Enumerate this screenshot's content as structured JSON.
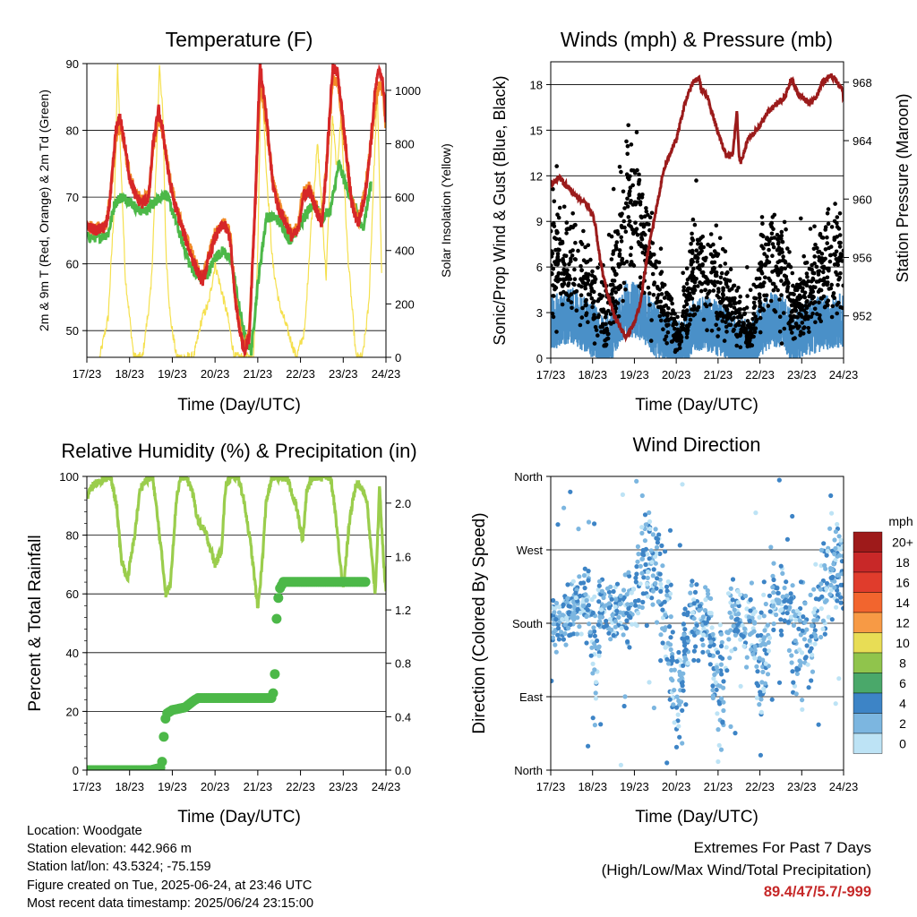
{
  "colors": {
    "temp_2m": "#d62728",
    "temp_9m": "#f28c28",
    "dewpoint": "#4cb848",
    "solar": "#f5e04e",
    "gust": "#000000",
    "wind": "#4a90c8",
    "pressure": "#9b1b1b",
    "rh": "#9acd4c",
    "precip": "#4cb848",
    "extremes_value": "#c62828"
  },
  "info": {
    "location": "Location: Woodgate",
    "elevation": "Station elevation: 442.966 m",
    "latlon": "Station lat/lon: 43.5324; -75.159",
    "created": "Figure created on Tue, 2025-06-24, at 23:46 UTC",
    "timestamp": "Most recent data timestamp: 2025/06/24 23:15:00"
  },
  "extremes": {
    "title": "Extremes For Past 7 Days",
    "subtitle": "(High/Low/Max Wind/Total Precipitation)",
    "value": "89.4/47/5.7/-999"
  },
  "chart_data": [
    {
      "type": "line",
      "title": "Temperature (F)",
      "xlabel": "Time (Day/UTC)",
      "ylabel": "2m & 9m T (Red, Orange) & 2m Td (Green)",
      "y2label": "Solar Insolation (Yellow)",
      "xticks": [
        "17/23",
        "18/23",
        "19/23",
        "20/23",
        "21/23",
        "22/23",
        "23/23",
        "24/23"
      ],
      "xlim": [
        0,
        7
      ],
      "ylim": [
        46,
        90
      ],
      "yticks": [
        50,
        60,
        70,
        80,
        90
      ],
      "y2lim": [
        0,
        1100
      ],
      "y2ticks": [
        0,
        200,
        400,
        600,
        800,
        1000
      ],
      "grid": "horizontal",
      "series": [
        {
          "name": "2m T",
          "axis": "left",
          "x": [
            0,
            0.2,
            0.45,
            0.55,
            0.68,
            0.78,
            0.88,
            1.0,
            1.15,
            1.3,
            1.45,
            1.55,
            1.68,
            1.8,
            1.92,
            2.05,
            2.2,
            2.4,
            2.55,
            2.65,
            2.72,
            2.8,
            3.0,
            3.2,
            3.35,
            3.45,
            3.55,
            3.68,
            3.8,
            3.95,
            4.05,
            4.2,
            4.35,
            4.5,
            4.6,
            4.8,
            4.95,
            5.05,
            5.2,
            5.35,
            5.5,
            5.6,
            5.75,
            5.88,
            5.95,
            6.05,
            6.2,
            6.35,
            6.5,
            6.6,
            6.75,
            6.85,
            6.95,
            7.0
          ],
          "y": [
            65.5,
            65,
            65.5,
            70,
            80,
            82,
            78,
            73,
            70,
            69,
            70,
            78,
            83,
            79,
            73,
            69,
            66,
            62,
            59.5,
            58,
            57.5,
            59.5,
            64,
            66,
            64,
            56,
            51,
            47,
            49,
            71,
            90,
            82,
            72,
            68,
            67,
            64,
            65,
            70,
            71,
            68.5,
            66,
            74,
            89.3,
            88.5,
            84,
            78,
            69,
            66,
            70,
            75,
            86,
            89.4,
            86,
            81
          ]
        },
        {
          "name": "9m T",
          "axis": "left",
          "x": [
            0,
            0.2,
            0.45,
            0.55,
            0.68,
            0.78,
            0.88,
            1.0,
            1.15,
            1.3,
            1.45,
            1.55,
            1.68,
            1.8,
            1.92,
            2.05,
            2.2,
            2.4,
            2.55,
            2.65,
            2.72,
            2.8,
            3.0,
            3.2,
            3.35,
            3.45,
            3.55,
            3.68,
            3.8,
            3.95,
            4.05,
            4.2,
            4.35,
            4.5,
            4.6,
            4.8,
            4.95,
            5.05,
            5.2,
            5.35,
            5.5,
            5.6,
            5.75,
            5.88,
            5.95,
            6.05,
            6.2,
            6.35,
            6.5,
            6.6,
            6.75,
            6.85,
            6.95,
            7.0
          ],
          "y": [
            65.8,
            65.3,
            65.8,
            70.3,
            79,
            81,
            77.5,
            73,
            70.5,
            69.5,
            70.5,
            77,
            82,
            79,
            73.5,
            69.5,
            66.5,
            62.5,
            60,
            58.5,
            58,
            60,
            64.5,
            66.5,
            64.5,
            56.5,
            51.5,
            47.5,
            49.5,
            70,
            88,
            81,
            72.5,
            68.5,
            67.5,
            64.5,
            65.5,
            70.5,
            71.5,
            69,
            66.5,
            74,
            87.5,
            87,
            83,
            77,
            69.5,
            66.5,
            70.5,
            75.5,
            84,
            87,
            85,
            80
          ]
        },
        {
          "name": "2m Td",
          "axis": "left",
          "x": [
            0,
            0.3,
            0.5,
            0.65,
            0.8,
            1.0,
            1.2,
            1.4,
            1.55,
            1.7,
            1.85,
            2.0,
            2.2,
            2.4,
            2.6,
            2.8,
            3.0,
            3.2,
            3.4,
            3.55,
            3.7,
            3.85,
            4.0,
            4.2,
            4.4,
            4.55,
            4.75,
            4.9,
            5.1,
            5.3,
            5.5,
            5.7,
            5.9,
            6.1,
            6.3,
            6.45,
            6.65
          ],
          "y": [
            64,
            64,
            64.5,
            69,
            70,
            69.5,
            68,
            68,
            69,
            70,
            70.5,
            68,
            64,
            60,
            58,
            58,
            61,
            62,
            60,
            54,
            49,
            47,
            57,
            67,
            67,
            66,
            63.5,
            65,
            67,
            69,
            67,
            68,
            75,
            71,
            68,
            65,
            72
          ]
        },
        {
          "name": "Solar",
          "axis": "right",
          "x": [
            0.3,
            0.5,
            0.65,
            0.72,
            0.78,
            0.9,
            1.1,
            1.3,
            1.5,
            1.62,
            1.7,
            1.78,
            1.85,
            1.95,
            2.1,
            2.3,
            2.5,
            2.7,
            2.85,
            3.0,
            3.15,
            3.3,
            3.45,
            3.6,
            3.9,
            4.0,
            4.08,
            4.2,
            4.35,
            4.5,
            4.7,
            4.9,
            5.1,
            5.25,
            5.4,
            5.6,
            5.75,
            5.85,
            5.95,
            6.1,
            6.3,
            6.45,
            6.6,
            6.72,
            6.8,
            6.9
          ],
          "y": [
            0,
            150,
            600,
            1100,
            800,
            300,
            0,
            0,
            250,
            700,
            1100,
            900,
            400,
            150,
            0,
            0,
            0,
            150,
            200,
            350,
            250,
            150,
            0,
            0,
            0,
            400,
            1100,
            700,
            350,
            200,
            100,
            0,
            100,
            500,
            800,
            300,
            900,
            700,
            900,
            400,
            0,
            0,
            200,
            700,
            1000,
            300
          ]
        }
      ]
    },
    {
      "type": "scatter",
      "title": "Winds (mph) & Pressure (mb)",
      "xlabel": "Time (Day/UTC)",
      "ylabel": "Sonic/Prop Wind & Gust (Blue, Black)",
      "y2label": "Station Pressure (Maroon)",
      "xticks": [
        "17/23",
        "18/23",
        "19/23",
        "20/23",
        "21/23",
        "22/23",
        "23/23",
        "24/23"
      ],
      "xlim": [
        0,
        7
      ],
      "ylim": [
        0,
        19.5
      ],
      "yticks": [
        0,
        3,
        6,
        9,
        12,
        15,
        18
      ],
      "y2lim": [
        949.1,
        969.4
      ],
      "y2ticks": [
        952,
        956,
        960,
        964,
        968
      ],
      "grid": "horizontal",
      "gust_envelope": {
        "x": [
          0,
          0.5,
          1.0,
          1.3,
          1.6,
          1.8,
          2.0,
          2.2,
          2.5,
          2.8,
          3.1,
          3.4,
          3.6,
          3.8,
          4.1,
          4.3,
          4.6,
          4.8,
          5.0,
          5.3,
          5.6,
          5.8,
          6.0,
          6.3,
          6.6,
          6.8,
          7.0
        ],
        "mean": [
          6,
          6.5,
          4.5,
          2.5,
          6,
          10,
          9.5,
          8,
          5,
          3,
          1.5,
          6,
          6,
          5.5,
          4,
          3.5,
          2,
          1.5,
          5,
          6.5,
          5.5,
          3,
          4,
          5.5,
          6,
          6.5,
          6
        ],
        "spread": [
          2.5,
          2.5,
          2.5,
          2,
          3,
          3.5,
          3.5,
          3,
          2.5,
          1.5,
          0.8,
          2.5,
          2.5,
          2.5,
          2,
          2,
          1,
          0.8,
          2.5,
          3,
          3,
          1.5,
          2,
          2.5,
          3,
          3,
          3
        ]
      },
      "wind_envelope": {
        "x": [
          0,
          0.5,
          1.0,
          1.3,
          1.6,
          1.8,
          2.0,
          2.2,
          2.5,
          2.8,
          3.1,
          3.4,
          3.6,
          3.8,
          4.1,
          4.3,
          4.6,
          4.8,
          5.0,
          5.3,
          5.6,
          5.8,
          6.0,
          6.3,
          6.6,
          6.8,
          7.0
        ],
        "mean": [
          2,
          2.5,
          1.5,
          0.5,
          2,
          3,
          2.8,
          2.5,
          1.5,
          0.8,
          0.2,
          1.8,
          2,
          1.8,
          1.5,
          1,
          0.5,
          0.3,
          1.5,
          2.3,
          2,
          0.8,
          1.5,
          1.8,
          2,
          2.2,
          2
        ]
      },
      "series": [
        {
          "name": "Station Pressure",
          "axis": "right",
          "type": "line",
          "x": [
            0,
            0.2,
            0.35,
            0.5,
            0.7,
            0.9,
            1.05,
            1.2,
            1.4,
            1.6,
            1.8,
            2.0,
            2.15,
            2.3,
            2.5,
            2.7,
            2.9,
            3.0,
            3.2,
            3.4,
            3.55,
            3.6,
            3.75,
            3.85,
            4.0,
            4.2,
            4.35,
            4.45,
            4.5,
            4.55,
            4.7,
            4.85,
            5.0,
            5.2,
            5.4,
            5.6,
            5.75,
            5.85,
            6.0,
            6.2,
            6.35,
            6.5,
            6.7,
            6.85,
            6.95,
            7.0
          ],
          "y": [
            961,
            961.5,
            961,
            960.5,
            960,
            959.5,
            958.5,
            955.5,
            953,
            951.5,
            950.5,
            951.5,
            953,
            956,
            959,
            962,
            963.5,
            964,
            966.5,
            968,
            968.3,
            967.5,
            967,
            966,
            964.5,
            963,
            963,
            966,
            963,
            962.5,
            964,
            964.5,
            965,
            966,
            966.5,
            967,
            968.3,
            967.5,
            967,
            966.5,
            967,
            968,
            968.5,
            968,
            967.5,
            967
          ]
        }
      ]
    },
    {
      "type": "line",
      "title": "Relative Humidity (%) & Precipitation (in)",
      "xlabel": "Time (Day/UTC)",
      "ylabel": "Percent & Total Rainfall",
      "xticks": [
        "17/23",
        "18/23",
        "19/23",
        "20/23",
        "21/23",
        "22/23",
        "23/23",
        "24/23"
      ],
      "xlim": [
        0,
        7
      ],
      "ylim": [
        0,
        100
      ],
      "yticks": [
        0,
        20,
        40,
        60,
        80,
        100
      ],
      "y2lim": [
        0,
        2.2
      ],
      "y2ticks": [
        0.0,
        0.4,
        0.8,
        1.2,
        1.6,
        2.0
      ],
      "grid": "horizontal",
      "series": [
        {
          "name": "RH",
          "axis": "left",
          "x": [
            0,
            0.15,
            0.35,
            0.55,
            0.7,
            0.8,
            0.95,
            1.1,
            1.25,
            1.4,
            1.55,
            1.7,
            1.85,
            1.95,
            2.1,
            2.2,
            2.3,
            2.45,
            2.6,
            2.8,
            3.0,
            3.15,
            3.25,
            3.4,
            3.55,
            3.7,
            3.85,
            4.0,
            4.1,
            4.2,
            4.35,
            4.5,
            4.7,
            4.9,
            5.05,
            5.15,
            5.3,
            5.5,
            5.7,
            5.8,
            5.9,
            6.0,
            6.15,
            6.3,
            6.45,
            6.55,
            6.65,
            6.75,
            6.85,
            6.95,
            7.0
          ],
          "y": [
            93,
            97,
            99,
            100,
            90,
            72,
            65,
            78,
            96,
            99,
            99,
            80,
            60,
            63,
            93,
            100,
            100,
            96,
            85,
            80,
            70,
            75,
            97,
            100,
            100,
            90,
            75,
            55,
            70,
            92,
            100,
            100,
            99,
            90,
            78,
            96,
            100,
            100,
            100,
            90,
            75,
            62,
            85,
            98,
            96,
            92,
            75,
            60,
            96,
            70,
            60
          ]
        },
        {
          "name": "Total Rainfall",
          "axis": "right",
          "x": [
            0,
            0.5,
            1.0,
            1.5,
            1.75,
            1.78,
            1.8,
            1.85,
            2.0,
            2.3,
            2.5,
            2.6,
            3.0,
            3.5,
            4.0,
            4.35,
            4.4,
            4.42,
            4.45,
            4.5,
            4.6,
            5.0,
            5.5,
            6.0,
            6.5,
            7.0
          ],
          "y": [
            0,
            0,
            0,
            0,
            0.02,
            0.15,
            0.25,
            0.42,
            0.45,
            0.47,
            0.52,
            0.54,
            0.54,
            0.54,
            0.54,
            0.54,
            0.72,
            1.0,
            1.2,
            1.35,
            1.41,
            1.41,
            1.41,
            1.41,
            1.41,
            1.41
          ]
        }
      ]
    },
    {
      "type": "scatter",
      "title": "Wind Direction",
      "xlabel": "Time (Day/UTC)",
      "ylabel": "Direction (Colored By Speed)",
      "xticks": [
        "17/23",
        "18/23",
        "19/23",
        "20/23",
        "21/23",
        "22/23",
        "23/23",
        "24/23"
      ],
      "xlim": [
        0,
        7
      ],
      "ylim": [
        0,
        360
      ],
      "yticklabels": [
        "North",
        "East",
        "South",
        "West",
        "North"
      ],
      "yticks": [
        0,
        90,
        180,
        270,
        360
      ],
      "grid": "horizontal",
      "legend_title": "mph",
      "legend_labels": [
        "20+",
        "18",
        "16",
        "14",
        "12",
        "10",
        "8",
        "6",
        "4",
        "2",
        "0"
      ],
      "legend_colors": [
        "#9e1a1a",
        "#c82828",
        "#e03c2c",
        "#f2652e",
        "#f79a45",
        "#e8dd55",
        "#90c44c",
        "#4aa86a",
        "#3d84c6",
        "#7cb6e0",
        "#bde3f5"
      ],
      "direction_envelope": {
        "x": [
          0,
          0.3,
          0.6,
          0.9,
          1.0,
          1.2,
          1.5,
          1.8,
          2.0,
          2.3,
          2.6,
          2.8,
          3.0,
          3.3,
          3.5,
          3.8,
          4.0,
          4.3,
          4.5,
          4.8,
          5.0,
          5.3,
          5.6,
          5.8,
          6.0,
          6.3,
          6.6,
          6.8,
          7.0
        ],
        "mean": [
          175,
          185,
          200,
          210,
          120,
          200,
          190,
          200,
          205,
          260,
          240,
          180,
          80,
          180,
          185,
          185,
          80,
          190,
          175,
          180,
          120,
          200,
          230,
          170,
          150,
          190,
          240,
          250,
          270
        ],
        "spread": [
          30,
          30,
          30,
          40,
          70,
          30,
          30,
          35,
          40,
          50,
          50,
          70,
          60,
          40,
          40,
          40,
          80,
          40,
          40,
          40,
          80,
          40,
          50,
          60,
          80,
          50,
          50,
          50,
          60
        ]
      }
    }
  ]
}
